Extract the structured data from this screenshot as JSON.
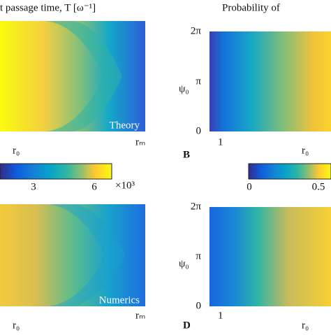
{
  "header": {
    "left_title": "t passage time, T [ω⁻¹]",
    "right_title": "Probability of"
  },
  "panels": [
    {
      "label": "Theory",
      "x_label": "r₀",
      "x_end": "rₘ"
    },
    {
      "letter": "B",
      "y_label": "ψ₀",
      "y_ticks": [
        "2π",
        "π",
        "0"
      ],
      "x_tick": "1",
      "x_label": "r₀"
    },
    {
      "label": "Numerics",
      "x_label": "r₀",
      "x_end": "rₘ"
    },
    {
      "letter": "D",
      "y_label": "ψ₀",
      "y_ticks": [
        "2π",
        "π",
        "0"
      ],
      "x_tick": "1",
      "x_label": "r₀"
    }
  ],
  "colorbars": [
    {
      "ticks": [
        "3",
        "6"
      ],
      "multiplier": "×10³"
    },
    {
      "ticks": [
        "0",
        "0.5"
      ]
    }
  ]
}
